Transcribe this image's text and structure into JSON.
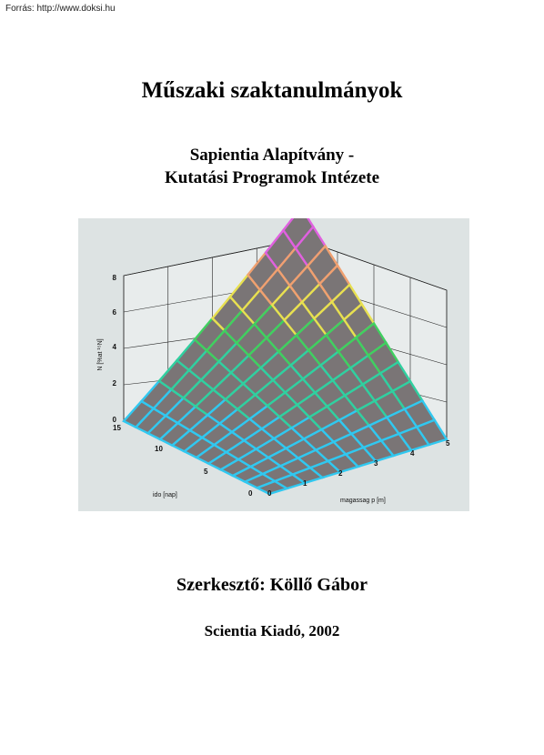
{
  "source_note": "Forrás: http://www.doksi.hu",
  "title": "Műszaki szaktanulmányok",
  "organization": {
    "line1": "Sapientia Alapítvány -",
    "line2": "Kutatási Programok Intézete"
  },
  "figure": {
    "z_axis_label": "N [%at ¹⁵N]",
    "x_axis_label": "magassag p [m]",
    "y_axis_label": "ido [nap]",
    "z_ticks": [
      "0",
      "2",
      "4",
      "6",
      "8"
    ],
    "x_ticks": [
      "0",
      "1",
      "2",
      "3",
      "4",
      "5"
    ],
    "y_ticks": [
      "0",
      "5",
      "10",
      "15"
    ]
  },
  "editor": "Szerkesztő: Köllő Gábor",
  "publisher": "Scientia Kiadó, 2002"
}
